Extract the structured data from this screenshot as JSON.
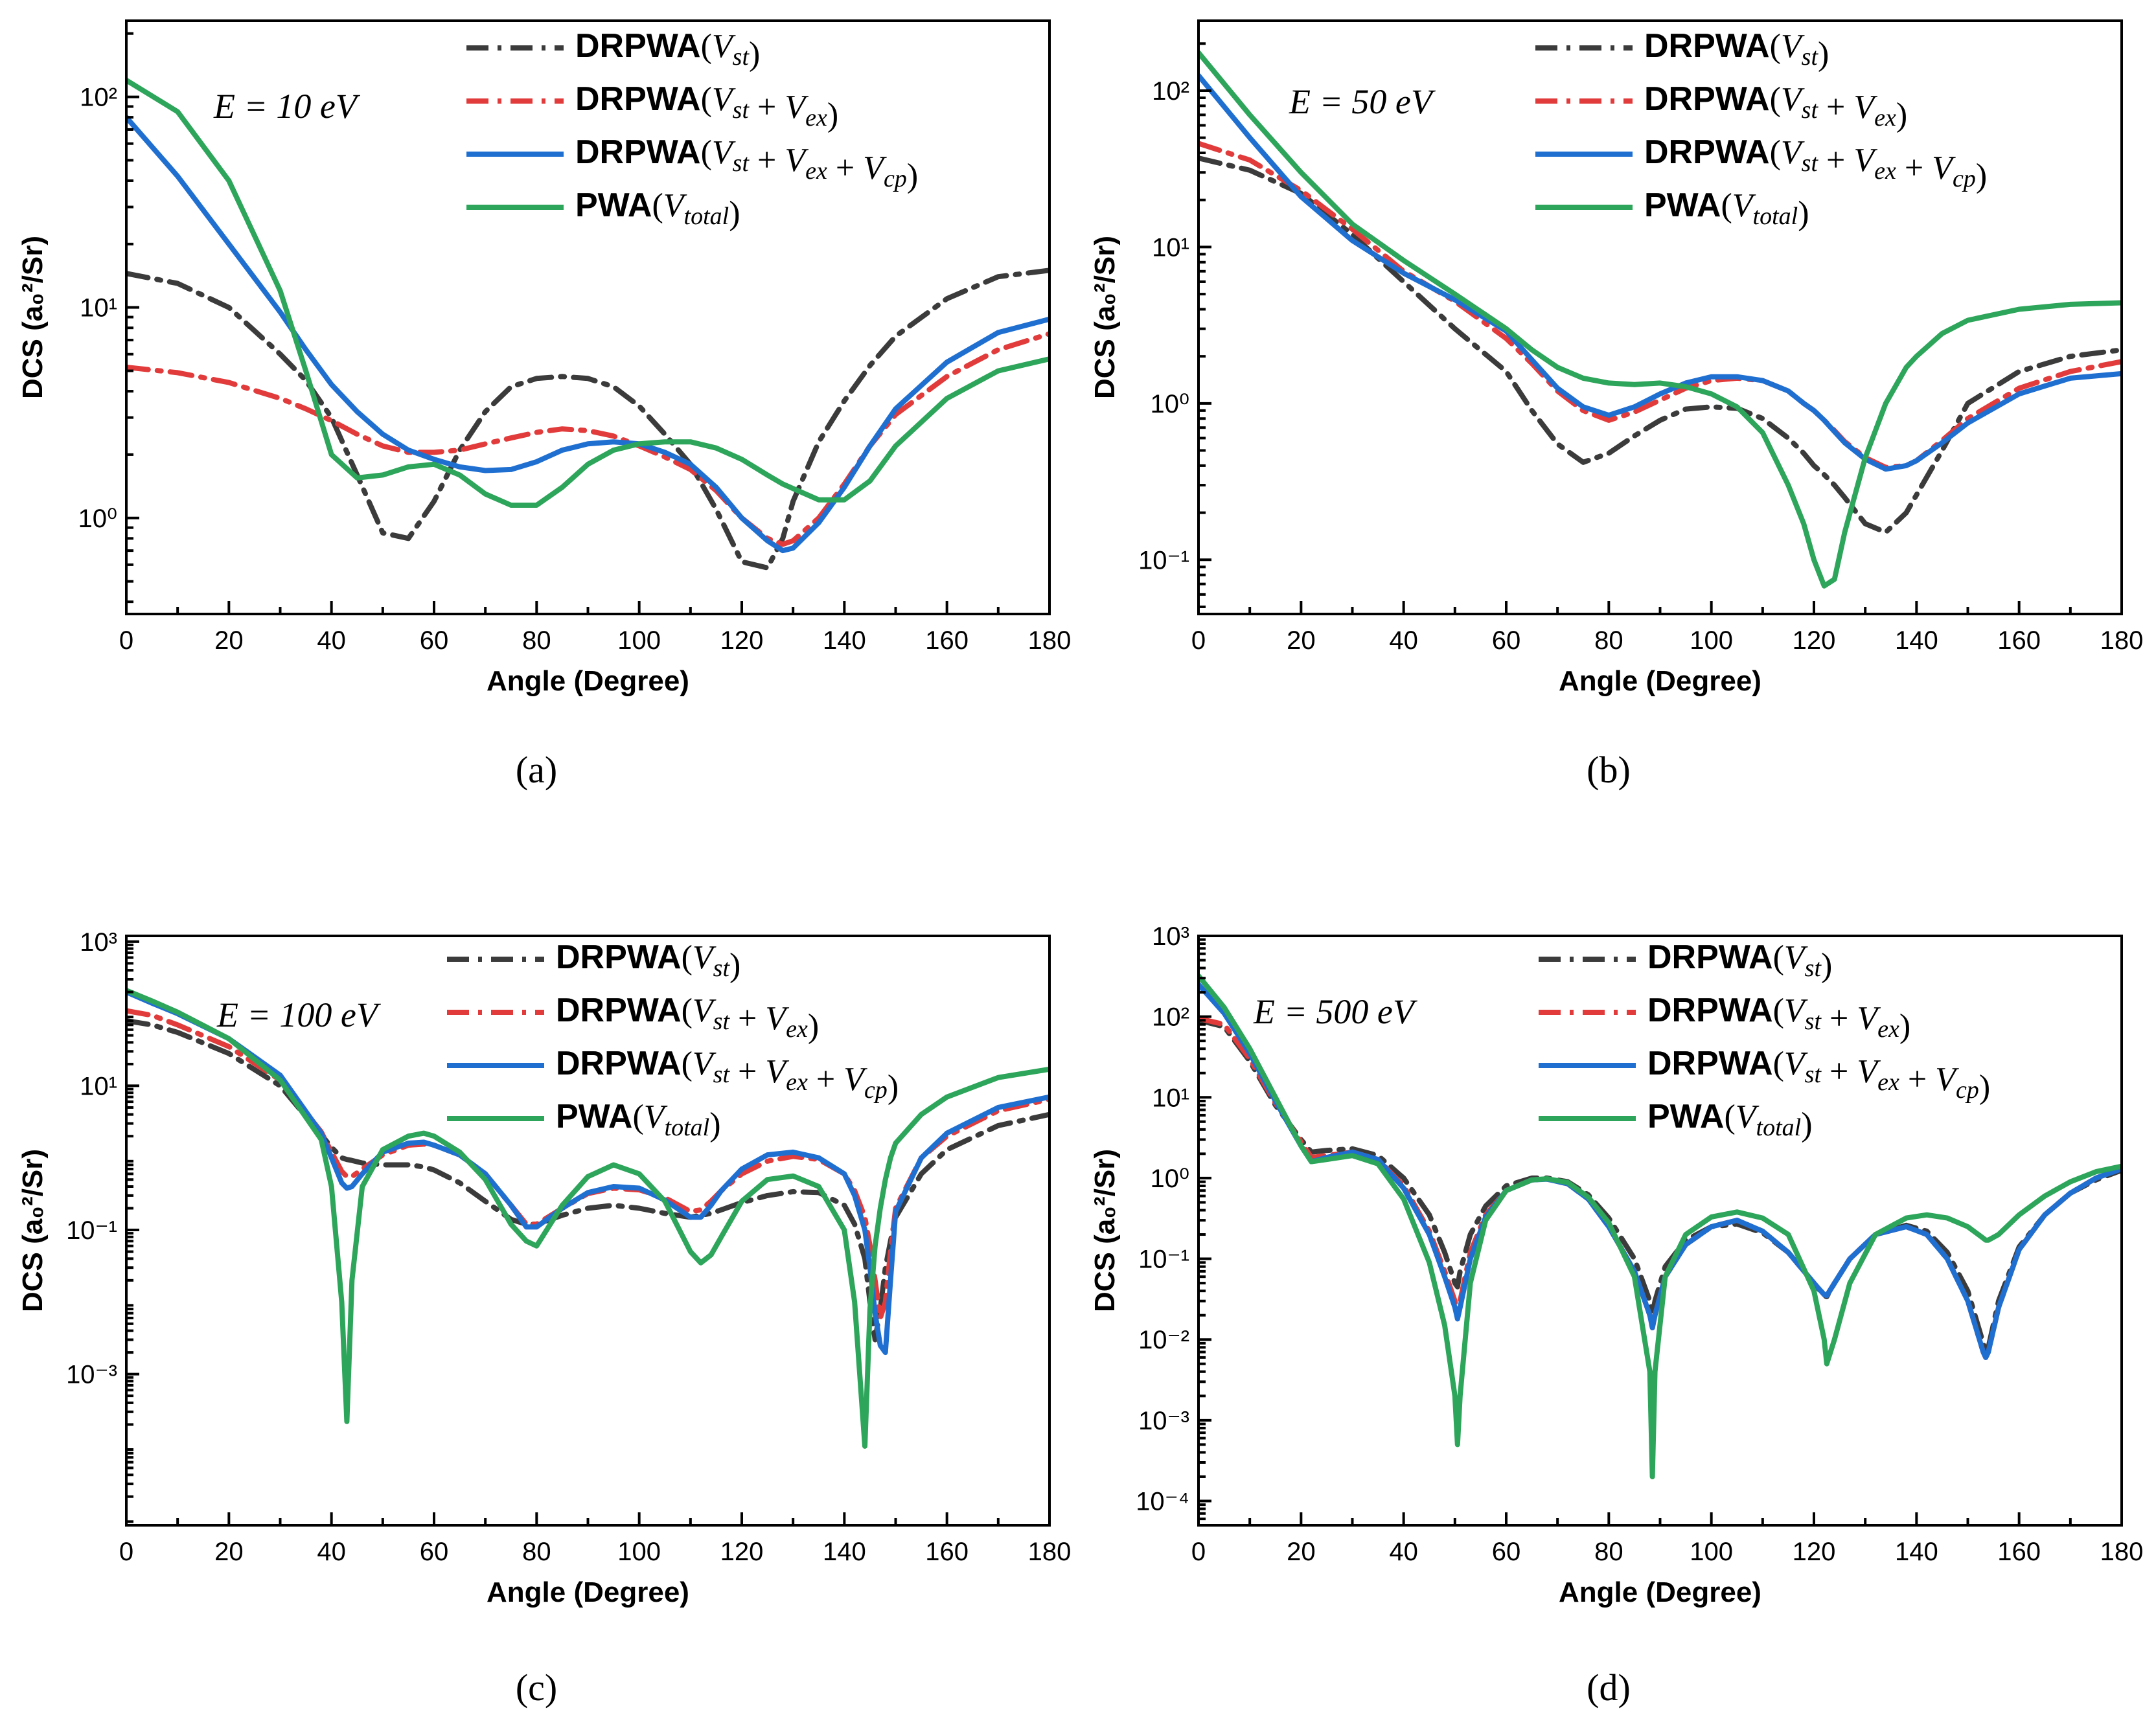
{
  "series_styles": [
    {
      "key": "st",
      "name": "DRPWA(V_st)",
      "color": "#3b3b3b",
      "dash": "dashdot"
    },
    {
      "key": "stex",
      "name": "DRPWA(V_st + V_ex)",
      "color": "#e23b3b",
      "dash": "dashdot"
    },
    {
      "key": "stexcp",
      "name": "DRPWA(V_st + V_ex + V_cp)",
      "color": "#1f6fd1",
      "dash": "solid"
    },
    {
      "key": "pwa",
      "name": "PWA(V_total)",
      "color": "#2da55a",
      "dash": "solid"
    }
  ],
  "legend_labels": [
    {
      "prefix": "DRPWA",
      "math": "(V_st)"
    },
    {
      "prefix": "DRPWA",
      "math": "(V_st + V_ex)"
    },
    {
      "prefix": "DRPWA",
      "math": "(V_st + V_ex + V_cp)"
    },
    {
      "prefix": "PWA",
      "math": "(V_total)"
    }
  ],
  "chart_data": [
    {
      "type": "line",
      "caption": "(a)",
      "annotation": "E = 10 eV",
      "xlabel": "Angle (Degree)",
      "ylabel": "DCS (a₀²/Sr)",
      "yscale": "log",
      "xlim": [
        0,
        180
      ],
      "ylim": [
        0.35,
        230
      ],
      "xticks": [
        0,
        20,
        40,
        60,
        80,
        100,
        120,
        140,
        160,
        180
      ],
      "yticks": [
        {
          "v": 1,
          "label": "10⁰"
        },
        {
          "v": 10,
          "label": "10¹"
        },
        {
          "v": 100,
          "label": "10²"
        }
      ],
      "x": [
        0,
        10,
        20,
        30,
        35,
        40,
        45,
        50,
        55,
        60,
        65,
        70,
        75,
        80,
        85,
        90,
        95,
        100,
        105,
        110,
        115,
        120,
        125,
        128,
        130,
        135,
        140,
        145,
        150,
        160,
        170,
        180
      ],
      "series": [
        {
          "key": "st",
          "values": [
            14.5,
            13,
            10,
            6,
            4.5,
            3,
            1.6,
            0.85,
            0.8,
            1.2,
            2.1,
            3.2,
            4.2,
            4.6,
            4.7,
            4.6,
            4.2,
            3.4,
            2.5,
            1.8,
            1.1,
            0.62,
            0.58,
            0.8,
            1.2,
            2.3,
            3.6,
            5.3,
            7.3,
            11,
            14,
            15
          ]
        },
        {
          "key": "stex",
          "values": [
            5.2,
            4.9,
            4.4,
            3.7,
            3.3,
            2.9,
            2.5,
            2.2,
            2.05,
            2.05,
            2.1,
            2.25,
            2.4,
            2.55,
            2.65,
            2.6,
            2.45,
            2.2,
            1.95,
            1.7,
            1.35,
            1.0,
            0.8,
            0.75,
            0.78,
            1.0,
            1.45,
            2.2,
            3.1,
            4.7,
            6.3,
            7.5
          ]
        },
        {
          "key": "stexcp",
          "values": [
            80,
            42,
            20,
            9.5,
            6.3,
            4.3,
            3.2,
            2.5,
            2.1,
            1.9,
            1.75,
            1.68,
            1.7,
            1.85,
            2.1,
            2.25,
            2.3,
            2.25,
            2.05,
            1.8,
            1.4,
            1.0,
            0.78,
            0.7,
            0.72,
            0.95,
            1.4,
            2.2,
            3.3,
            5.5,
            7.6,
            8.8
          ]
        },
        {
          "key": "pwa",
          "values": [
            120,
            85,
            40,
            12,
            5,
            2.0,
            1.55,
            1.6,
            1.75,
            1.8,
            1.6,
            1.3,
            1.15,
            1.15,
            1.4,
            1.8,
            2.1,
            2.25,
            2.3,
            2.3,
            2.15,
            1.9,
            1.6,
            1.45,
            1.38,
            1.22,
            1.22,
            1.5,
            2.2,
            3.7,
            5.0,
            5.7
          ]
        }
      ]
    },
    {
      "type": "line",
      "caption": "(b)",
      "annotation": "E = 50 eV",
      "xlabel": "Angle (Degree)",
      "ylabel": "DCS (a₀²/Sr)",
      "yscale": "log",
      "xlim": [
        0,
        180
      ],
      "ylim": [
        0.045,
        280
      ],
      "xticks": [
        0,
        20,
        40,
        60,
        80,
        100,
        120,
        140,
        160,
        180
      ],
      "yticks": [
        {
          "v": 0.1,
          "label": "10⁻¹"
        },
        {
          "v": 1,
          "label": "10⁰"
        },
        {
          "v": 10,
          "label": "10¹"
        },
        {
          "v": 100,
          "label": "10²"
        }
      ],
      "x": [
        0,
        10,
        20,
        30,
        40,
        50,
        60,
        65,
        70,
        75,
        80,
        85,
        90,
        95,
        100,
        105,
        110,
        115,
        118,
        120,
        122,
        124,
        126,
        130,
        134,
        138,
        140,
        145,
        150,
        160,
        170,
        180
      ],
      "series": [
        {
          "key": "st",
          "values": [
            37,
            31,
            22,
            12,
            6,
            3,
            1.6,
            0.9,
            0.55,
            0.42,
            0.48,
            0.62,
            0.78,
            0.92,
            0.95,
            0.93,
            0.8,
            0.6,
            0.48,
            0.4,
            0.35,
            0.3,
            0.25,
            0.17,
            0.15,
            0.2,
            0.26,
            0.5,
            1.0,
            1.6,
            2.0,
            2.2
          ]
        },
        {
          "key": "stex",
          "values": [
            46,
            36,
            23,
            13,
            7,
            4.5,
            2.6,
            1.8,
            1.2,
            0.9,
            0.78,
            0.88,
            1.05,
            1.25,
            1.4,
            1.45,
            1.4,
            1.2,
            1.0,
            0.9,
            0.78,
            0.67,
            0.57,
            0.45,
            0.39,
            0.4,
            0.43,
            0.58,
            0.8,
            1.25,
            1.6,
            1.85
          ]
        },
        {
          "key": "stexcp",
          "values": [
            125,
            50,
            21,
            11,
            6.8,
            4.6,
            2.9,
            1.9,
            1.25,
            0.95,
            0.84,
            0.95,
            1.15,
            1.35,
            1.48,
            1.48,
            1.4,
            1.2,
            1.0,
            0.9,
            0.78,
            0.66,
            0.56,
            0.44,
            0.38,
            0.4,
            0.43,
            0.56,
            0.75,
            1.15,
            1.45,
            1.55
          ]
        },
        {
          "key": "pwa",
          "values": [
            175,
            70,
            30,
            14,
            8.2,
            5,
            3,
            2.2,
            1.7,
            1.45,
            1.35,
            1.32,
            1.35,
            1.28,
            1.15,
            0.95,
            0.65,
            0.3,
            0.17,
            0.1,
            0.068,
            0.075,
            0.15,
            0.45,
            1.0,
            1.7,
            2.0,
            2.8,
            3.4,
            4.0,
            4.3,
            4.4
          ]
        }
      ]
    },
    {
      "type": "line",
      "caption": "(c)",
      "annotation": "E = 100 eV",
      "xlabel": "Angle (Degree)",
      "ylabel": "DCS (a₀²/Sr)",
      "yscale": "log",
      "xlim": [
        0,
        180
      ],
      "ylim": [
        8e-06,
        1200
      ],
      "xticks": [
        0,
        20,
        40,
        60,
        80,
        100,
        120,
        140,
        160,
        180
      ],
      "yticks": [
        {
          "v": 0.001,
          "label": "10⁻³"
        },
        {
          "v": 0.1,
          "label": "10⁻¹"
        },
        {
          "v": 10,
          "label": "10¹"
        },
        {
          "v": 1000,
          "label": "10³"
        }
      ],
      "x": [
        0,
        5,
        10,
        20,
        30,
        38,
        40,
        42,
        43,
        44,
        46,
        50,
        55,
        58,
        60,
        65,
        70,
        75,
        78,
        80,
        85,
        90,
        95,
        100,
        105,
        110,
        112,
        114,
        116,
        120,
        125,
        130,
        135,
        140,
        142,
        144,
        145,
        146,
        147,
        148,
        149,
        150,
        155,
        160,
        170,
        180
      ],
      "series": [
        {
          "key": "st",
          "values": [
            80,
            70,
            55,
            28,
            10,
            2.1,
            1.4,
            1.0,
            0.95,
            0.92,
            0.85,
            0.8,
            0.8,
            0.75,
            0.68,
            0.45,
            0.25,
            0.14,
            0.12,
            0.12,
            0.16,
            0.2,
            0.22,
            0.2,
            0.17,
            0.15,
            0.16,
            0.17,
            0.19,
            0.24,
            0.3,
            0.34,
            0.33,
            0.22,
            0.12,
            0.04,
            0.01,
            0.003,
            0.008,
            0.03,
            0.07,
            0.15,
            0.6,
            1.3,
            2.8,
            4.0
          ]
        },
        {
          "key": "stex",
          "values": [
            110,
            95,
            70,
            35,
            12,
            2.3,
            1.2,
            0.65,
            0.55,
            0.55,
            0.7,
            1.1,
            1.5,
            1.55,
            1.5,
            1.1,
            0.6,
            0.22,
            0.12,
            0.12,
            0.2,
            0.32,
            0.38,
            0.36,
            0.28,
            0.18,
            0.19,
            0.25,
            0.35,
            0.6,
            0.9,
            1.05,
            0.95,
            0.6,
            0.35,
            0.15,
            0.06,
            0.02,
            0.006,
            0.01,
            0.05,
            0.2,
            1.0,
            2.0,
            4.5,
            6.5
          ]
        },
        {
          "key": "stexcp",
          "values": [
            200,
            140,
            100,
            45,
            14,
            2.2,
            1.0,
            0.45,
            0.38,
            0.4,
            0.6,
            1.2,
            1.6,
            1.65,
            1.5,
            1.1,
            0.6,
            0.22,
            0.11,
            0.11,
            0.2,
            0.33,
            0.4,
            0.38,
            0.26,
            0.15,
            0.15,
            0.22,
            0.35,
            0.7,
            1.1,
            1.2,
            1.0,
            0.6,
            0.3,
            0.1,
            0.03,
            0.007,
            0.0025,
            0.002,
            0.02,
            0.18,
            1.0,
            2.2,
            5.0,
            7.0
          ]
        },
        {
          "key": "pwa",
          "values": [
            210,
            150,
            105,
            45,
            12,
            1.8,
            0.4,
            0.01,
            0.00022,
            0.02,
            0.4,
            1.3,
            2.0,
            2.2,
            2.0,
            1.2,
            0.5,
            0.12,
            0.07,
            0.06,
            0.22,
            0.55,
            0.8,
            0.6,
            0.25,
            0.05,
            0.035,
            0.045,
            0.08,
            0.25,
            0.5,
            0.56,
            0.4,
            0.1,
            0.01,
            0.0001,
            0.008,
            0.06,
            0.2,
            0.5,
            1.0,
            1.6,
            4.0,
            7.0,
            13,
            17
          ]
        }
      ]
    },
    {
      "type": "line",
      "caption": "(d)",
      "annotation": "E = 500 eV",
      "xlabel": "Angle (Degree)",
      "ylabel": "DCS (a₀²/Sr)",
      "yscale": "log",
      "xlim": [
        0,
        180
      ],
      "ylim": [
        5e-05,
        1000
      ],
      "xticks": [
        0,
        20,
        40,
        60,
        80,
        100,
        120,
        140,
        160,
        180
      ],
      "yticks": [
        {
          "v": 0.0001,
          "label": "10⁻⁴"
        },
        {
          "v": 0.001,
          "label": "10⁻³"
        },
        {
          "v": 0.01,
          "label": "10⁻²"
        },
        {
          "v": 0.1,
          "label": "10⁻¹"
        },
        {
          "v": 1,
          "label": "10⁰"
        },
        {
          "v": 10,
          "label": "10¹"
        },
        {
          "v": 100,
          "label": "10²"
        },
        {
          "v": 1000,
          "label": "10³"
        }
      ],
      "x": [
        0,
        5,
        10,
        15,
        20,
        22,
        25,
        30,
        35,
        40,
        45,
        48,
        50,
        50.5,
        51,
        53,
        56,
        60,
        65,
        68,
        72,
        76,
        80,
        85,
        88,
        88.5,
        89,
        91,
        95,
        100,
        105,
        110,
        115,
        120,
        122,
        122.5,
        124,
        127,
        132,
        138,
        142,
        146,
        150,
        153,
        153.5,
        154,
        156,
        160,
        165,
        170,
        175,
        180
      ],
      "series": [
        {
          "key": "st",
          "values": [
            90,
            75,
            28,
            8,
            3,
            2.1,
            2.2,
            2.3,
            1.9,
            1.0,
            0.35,
            0.12,
            0.05,
            0.045,
            0.07,
            0.2,
            0.45,
            0.8,
            1.0,
            1.0,
            0.9,
            0.62,
            0.32,
            0.1,
            0.03,
            0.02,
            0.03,
            0.08,
            0.17,
            0.25,
            0.27,
            0.21,
            0.12,
            0.05,
            0.035,
            0.034,
            0.05,
            0.1,
            0.2,
            0.26,
            0.22,
            0.12,
            0.04,
            0.009,
            0.007,
            0.008,
            0.03,
            0.14,
            0.35,
            0.65,
            0.95,
            1.25
          ]
        },
        {
          "key": "stex",
          "values": [
            95,
            80,
            30,
            8.5,
            2.8,
            1.8,
            1.9,
            2.1,
            1.7,
            0.8,
            0.22,
            0.07,
            0.03,
            0.022,
            0.03,
            0.12,
            0.35,
            0.7,
            0.95,
            0.97,
            0.85,
            0.55,
            0.25,
            0.07,
            0.02,
            0.014,
            0.02,
            0.06,
            0.15,
            0.25,
            0.3,
            0.22,
            0.12,
            0.05,
            0.036,
            0.035,
            0.05,
            0.1,
            0.2,
            0.25,
            0.2,
            0.1,
            0.03,
            0.007,
            0.006,
            0.007,
            0.025,
            0.13,
            0.35,
            0.65,
            1.0,
            1.3
          ]
        },
        {
          "key": "stexcp",
          "values": [
            250,
            110,
            35,
            9,
            2.5,
            1.6,
            1.8,
            2.1,
            1.7,
            0.75,
            0.2,
            0.06,
            0.025,
            0.018,
            0.025,
            0.1,
            0.33,
            0.7,
            0.95,
            0.97,
            0.85,
            0.55,
            0.25,
            0.07,
            0.02,
            0.014,
            0.02,
            0.06,
            0.15,
            0.25,
            0.3,
            0.22,
            0.12,
            0.05,
            0.036,
            0.035,
            0.05,
            0.1,
            0.2,
            0.25,
            0.2,
            0.1,
            0.03,
            0.007,
            0.006,
            0.007,
            0.025,
            0.13,
            0.35,
            0.65,
            1.0,
            1.3
          ]
        },
        {
          "key": "pwa",
          "values": [
            320,
            130,
            40,
            10,
            2.5,
            1.6,
            1.7,
            1.9,
            1.5,
            0.55,
            0.09,
            0.015,
            0.002,
            0.0005,
            0.002,
            0.05,
            0.3,
            0.7,
            0.95,
            0.98,
            0.88,
            0.58,
            0.28,
            0.06,
            0.004,
            0.0002,
            0.004,
            0.06,
            0.2,
            0.33,
            0.38,
            0.32,
            0.2,
            0.04,
            0.01,
            0.005,
            0.01,
            0.05,
            0.2,
            0.32,
            0.35,
            0.32,
            0.25,
            0.18,
            0.17,
            0.17,
            0.2,
            0.35,
            0.6,
            0.9,
            1.2,
            1.4
          ]
        }
      ]
    }
  ]
}
